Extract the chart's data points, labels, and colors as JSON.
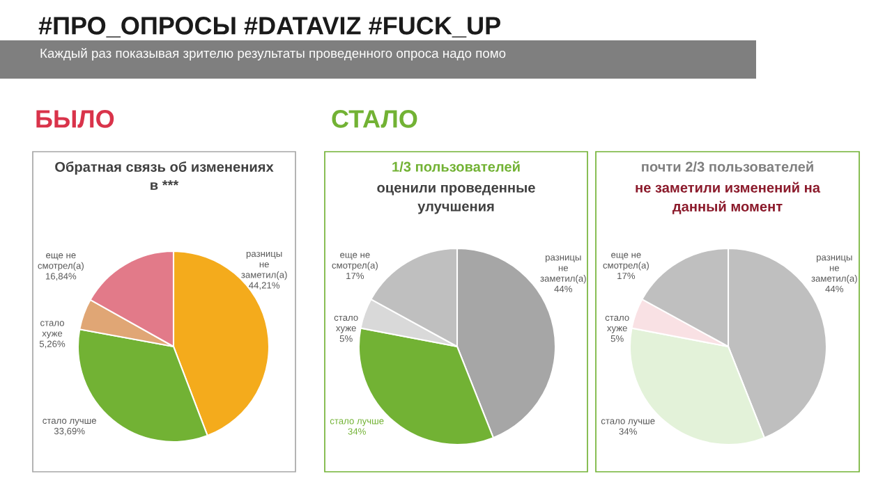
{
  "chart_data": [
    {
      "type": "pie",
      "title": "Обратная связь об изменениях\nв ***",
      "categories": [
        "разницы\nне\nзаметил(а)",
        "стало лучше",
        "стало\nхуже",
        "еще не\nсмотрел(а)"
      ],
      "values": [
        44.21,
        33.69,
        5.26,
        16.84
      ],
      "value_labels": [
        "44,21%",
        "33,69%",
        "5,26%",
        "16,84%"
      ],
      "colors": [
        "#f4ab1c",
        "#72b234",
        "#e0a675",
        "#e27a89"
      ],
      "legend": false,
      "annotations": [
        "#ПРО_ОПРОСЫ #DATAVIZ #FUCK_UP",
        "Каждый раз показывая зрителю результаты проведенного опроса надо помо",
        "БЫЛО"
      ]
    },
    {
      "type": "pie",
      "title": "1/3 пользователей",
      "subtitle": "оценили проведенные\nулучшения",
      "categories": [
        "разницы\nне\nзаметил(а)",
        "стало лучше",
        "стало\nхуже",
        "еще не\nсмотрел(а)"
      ],
      "values": [
        44,
        34,
        5,
        17
      ],
      "value_labels": [
        "44%",
        "34%",
        "5%",
        "17%"
      ],
      "colors": [
        "#a6a6a6",
        "#72b234",
        "#d9d9d9",
        "#bfbfbf"
      ],
      "legend": false,
      "annotations": [
        "СТАЛО"
      ]
    },
    {
      "type": "pie",
      "title": "почти 2/3 пользователей",
      "subtitle": "не заметили изменений на\nданный момент",
      "categories": [
        "разницы\nне\nзаметил(а)",
        "стало лучше",
        "стало\nхуже",
        "еще не\nсмотрел(а)"
      ],
      "values": [
        44,
        34,
        5,
        17
      ],
      "value_labels": [
        "44%",
        "34%",
        "5%",
        "17%"
      ],
      "colors": [
        "#bfbfbf",
        "#e3f2d9",
        "#f9e1e4",
        "#bfbfbf"
      ],
      "legend": false
    }
  ]
}
